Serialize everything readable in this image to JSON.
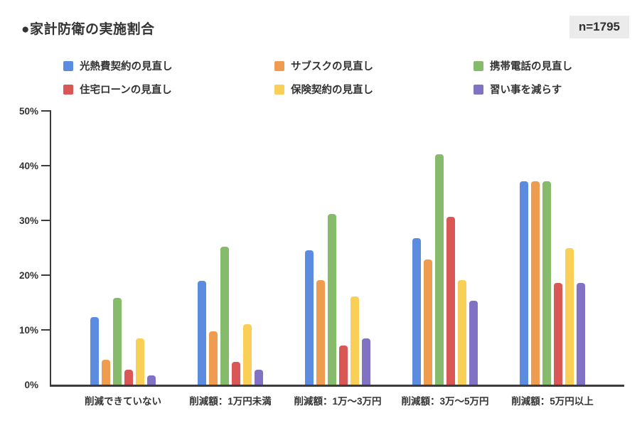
{
  "header": {
    "title": "●家計防衛の実施割合",
    "sample_badge": "n=1795"
  },
  "chart_data": {
    "type": "bar",
    "title": "家計防衛の実施割合",
    "sample_size_label": "n=1795",
    "categories": [
      "削減できていない",
      "削減額：1万円未満",
      "削減額：1万〜3万円",
      "削減額：3万〜5万円",
      "削減額：5万円以上"
    ],
    "series": [
      {
        "name": "光熱費契約の見直し",
        "color": "#5C8CDF",
        "values": [
          12.3,
          18.9,
          24.5,
          26.8,
          37.2
        ]
      },
      {
        "name": "サブスクの見直し",
        "color": "#EE9C4F",
        "values": [
          4.5,
          9.8,
          19.1,
          22.9,
          37.2
        ]
      },
      {
        "name": "携帯電話の見直し",
        "color": "#85BB6B",
        "values": [
          15.9,
          25.2,
          31.2,
          42.1,
          37.2
        ]
      },
      {
        "name": "住宅ローンの見直し",
        "color": "#D95754",
        "values": [
          2.7,
          4.2,
          7.1,
          30.6,
          18.6
        ]
      },
      {
        "name": "保険契約の見直し",
        "color": "#F9CF58",
        "values": [
          8.5,
          11.1,
          16.1,
          19.1,
          24.9
        ]
      },
      {
        "name": "習い事を減らす",
        "color": "#8172C3",
        "values": [
          1.7,
          2.7,
          8.4,
          15.3,
          18.6
        ]
      }
    ],
    "xlabel": "",
    "ylabel": "",
    "ylim": [
      0,
      50
    ],
    "yticks": [
      0,
      10,
      20,
      30,
      40,
      50
    ],
    "ytick_suffix": "%",
    "grid": false,
    "legend_position": "top",
    "axis_color": "#3c3c3c"
  }
}
